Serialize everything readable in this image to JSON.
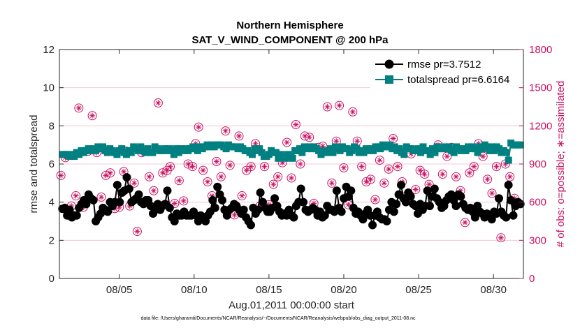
{
  "chart_data": {
    "type": "line",
    "title": "Northern Hemisphere",
    "subtitle": "SAT_V_WIND_COMPONENT @ 200 hPa",
    "xlabel": "Aug.01,2011 00:00:00 start",
    "ylabel": "rmse and totalspread",
    "y2label": "# of obs: o=possible; ∗=assimilated",
    "xlim": [
      1,
      32
    ],
    "ylim": [
      0,
      12
    ],
    "y2lim": [
      0,
      1800
    ],
    "x_ticks": [
      5,
      10,
      15,
      20,
      25,
      30
    ],
    "x_tick_labels": [
      "08/05",
      "08/10",
      "08/15",
      "08/20",
      "08/25",
      "08/30"
    ],
    "y_ticks": [
      0,
      2,
      4,
      6,
      8,
      10,
      12
    ],
    "y2_ticks": [
      0,
      300,
      600,
      900,
      1200,
      1500,
      1800
    ],
    "legend_position": "top-right",
    "grid": "horizontal, right-axis ticks",
    "colors": {
      "rmse": "#000000",
      "totalspread": "#008080",
      "obs": "#cc1060"
    },
    "series": [
      {
        "name": "rmse pr=3.7512",
        "axis": "left",
        "marker": "circle",
        "values": [
          3.65,
          3.7,
          3.3,
          3.6,
          3.2,
          3.3,
          3.3,
          3.7,
          3.9,
          4.1,
          3.9,
          4.4,
          4.2,
          4.1,
          3.0,
          3.2,
          3.4,
          3.7,
          3.6,
          3.5,
          4.0,
          3.8,
          4.0,
          4.9,
          4.0,
          4.5,
          4.6,
          5.3,
          4.7,
          4.0,
          4.1,
          4.2,
          4.4,
          4.0,
          3.9,
          4.1,
          4.1,
          3.8,
          3.4,
          3.6,
          3.9,
          3.6,
          3.8,
          3.9,
          4.6,
          3.7,
          3.2,
          3.0,
          3.4,
          3.3,
          3.3,
          3.5,
          3.3,
          3.3,
          3.3,
          3.5,
          3.3,
          3.0,
          3.3,
          3.1,
          3.0,
          3.3,
          3.5,
          4.1,
          3.7,
          4.8,
          4.4,
          4.1,
          3.6,
          3.3,
          3.6,
          3.7,
          3.9,
          3.8,
          3.6,
          3.4,
          3.6,
          3.2,
          3.0,
          2.8,
          3.7,
          3.4,
          3.6,
          4.5,
          4.0,
          3.7,
          3.5,
          3.5,
          3.7,
          4.2,
          3.8,
          3.5,
          3.3,
          3.4,
          3.3,
          3.6,
          3.3,
          3.2,
          3.8,
          4.0,
          4.7,
          4.0,
          3.6,
          3.5,
          3.6,
          3.7,
          3.6,
          3.3,
          3.5,
          3.2,
          3.3,
          3.8,
          3.6,
          3.6,
          3.5,
          4.6,
          3.7,
          3.5,
          4.2,
          4.8,
          4.3,
          4.6,
          3.7,
          3.4,
          3.5,
          3.3,
          3.1,
          3.4,
          3.6,
          3.3,
          2.8,
          3.3,
          3.5,
          3.2,
          3.1,
          3.1,
          3.0,
          3.6,
          4.0,
          3.5,
          3.9,
          4.4,
          4.9,
          4.2,
          4.0,
          4.5,
          4.3,
          3.9,
          3.8,
          3.4,
          3.9,
          3.6,
          3.8,
          4.6,
          3.8,
          4.3,
          4.7,
          4.2,
          4.0,
          3.7,
          3.8,
          4.1,
          4.3,
          4.4,
          4.1,
          3.8,
          4.4,
          4.3,
          3.9,
          3.7,
          3.6,
          3.7,
          3.5,
          3.2,
          3.8,
          3.5,
          3.4,
          3.2,
          3.4,
          3.3,
          3.1,
          3.5,
          3.4,
          4.2,
          3.5,
          3.3,
          3.2,
          4.9,
          4.1,
          3.3,
          3.8,
          4.0,
          3.9
        ]
      },
      {
        "name": "totalspread pr=6.6164",
        "axis": "left",
        "marker": "square",
        "values": [
          6.5,
          6.5,
          6.5,
          6.4,
          6.5,
          6.4,
          6.6,
          6.5,
          6.7,
          6.6,
          6.7,
          6.8,
          6.7,
          6.8,
          6.7,
          6.9,
          6.8,
          6.9,
          6.7,
          6.6,
          6.8,
          6.7,
          6.6,
          6.5,
          6.7,
          6.8,
          6.6,
          6.5,
          6.7,
          6.6,
          6.9,
          6.8,
          6.7,
          6.9,
          6.7,
          6.6,
          6.8,
          6.6,
          6.6,
          6.9,
          6.8,
          6.7,
          6.7,
          6.8,
          6.7,
          6.8,
          6.7,
          6.5,
          6.8,
          6.6,
          6.8,
          6.7,
          6.8,
          6.7,
          6.8,
          6.9,
          6.8,
          6.7,
          6.9,
          6.8,
          6.9,
          7.0,
          6.9,
          7.0,
          6.9,
          7.0,
          7.0,
          7.0,
          6.9,
          6.8,
          7.0,
          6.9,
          6.9,
          6.9,
          6.8,
          6.9,
          6.8,
          6.7,
          6.7,
          6.6,
          6.5,
          6.8,
          6.7,
          6.8,
          6.6,
          6.4,
          6.4,
          6.5,
          6.7,
          6.6,
          6.6,
          6.3,
          6.5,
          6.4,
          6.3,
          6.5,
          6.4,
          6.3,
          6.7,
          6.7,
          6.8,
          6.6,
          6.9,
          6.8,
          6.9,
          6.8,
          6.9,
          6.8,
          6.7,
          6.5,
          6.6,
          6.7,
          6.6,
          6.8,
          6.6,
          6.9,
          6.8,
          6.7,
          6.9,
          6.8,
          6.8,
          6.6,
          6.7,
          6.9,
          6.8,
          6.6,
          6.7,
          6.6,
          6.8,
          6.7,
          6.8,
          6.7,
          6.9,
          6.9,
          6.8,
          7.0,
          6.9,
          6.9,
          7.0,
          6.8,
          6.9,
          6.7,
          6.8,
          6.6,
          6.5,
          6.9,
          6.8,
          6.8,
          6.7,
          6.7,
          6.8,
          6.6,
          6.9,
          6.7,
          6.7,
          6.5,
          6.8,
          6.6,
          6.9,
          6.8,
          6.8,
          6.9,
          6.8,
          6.9,
          6.7,
          6.6,
          6.9,
          6.8,
          6.7,
          6.8,
          6.7,
          6.9,
          6.8,
          6.9,
          6.8,
          6.6,
          6.9,
          6.8,
          7.0,
          6.9,
          6.7,
          6.9,
          6.7,
          6.9,
          6.8,
          6.6,
          6.7,
          6.6,
          6.2,
          7.1,
          7.0,
          7.0,
          7.0,
          7.0
        ]
      },
      {
        "name": "# of obs possible",
        "axis": "right",
        "marker": "circle-open",
        "x": [
          1.1,
          1.4,
          1.8,
          2.1,
          2.3,
          2.6,
          2.9,
          3.2,
          3.5,
          3.8,
          4.1,
          4.4,
          4.7,
          5.0,
          5.3,
          5.5,
          5.7,
          6.0,
          6.2,
          6.5,
          6.7,
          7.0,
          7.3,
          7.6,
          7.9,
          8.2,
          8.4,
          8.7,
          9.0,
          9.3,
          9.6,
          9.9,
          10.1,
          10.3,
          10.6,
          10.9,
          11.2,
          11.5,
          11.8,
          12.1,
          12.4,
          12.7,
          13.0,
          13.2,
          13.5,
          13.8,
          14.1,
          14.4,
          14.7,
          15.0,
          15.3,
          15.6,
          15.9,
          16.2,
          16.5,
          16.8,
          17.1,
          17.4,
          17.7,
          18.0,
          18.3,
          18.6,
          18.9,
          19.2,
          19.5,
          19.7,
          20.0,
          20.3,
          20.6,
          20.9,
          21.2,
          21.5,
          21.8,
          22.1,
          22.4,
          22.7,
          23.0,
          23.3,
          23.6,
          23.9,
          24.2,
          24.5,
          24.8,
          25.1,
          25.4,
          25.7,
          26.0,
          26.3,
          26.6,
          26.9,
          27.2,
          27.5,
          27.8,
          28.1,
          28.4,
          28.7,
          29.0,
          29.3,
          29.6,
          29.9,
          30.2,
          30.5,
          30.8,
          31.1,
          31.4
        ],
        "values": [
          810,
          950,
          570,
          650,
          1340,
          560,
          1000,
          1280,
          990,
          640,
          810,
          830,
          550,
          560,
          840,
          1000,
          570,
          750,
          370,
          990,
          1010,
          800,
          690,
          1380,
          830,
          850,
          880,
          590,
          770,
          610,
          900,
          880,
          1060,
          1190,
          850,
          760,
          650,
          920,
          800,
          1160,
          890,
          500,
          1120,
          650,
          850,
          880,
          1060,
          570,
          880,
          580,
          740,
          800,
          910,
          1070,
          790,
          1210,
          900,
          1120,
          1110,
          590,
          1030,
          1040,
          1350,
          750,
          1080,
          1360,
          870,
          580,
          1310,
          1080,
          880,
          760,
          780,
          620,
          930,
          750,
          860,
          1100,
          880,
          760,
          650,
          980,
          700,
          850,
          820,
          740,
          1010,
          1050,
          820,
          960,
          1030,
          800,
          690,
          440,
          830,
          880,
          1060,
          960,
          780,
          670,
          880,
          320,
          900,
          800,
          630
        ]
      },
      {
        "name": "# of obs assimilated",
        "axis": "right",
        "marker": "asterisk",
        "x": [
          1.1,
          1.4,
          1.8,
          2.1,
          2.3,
          2.6,
          2.9,
          3.2,
          3.5,
          3.8,
          4.1,
          4.4,
          4.7,
          5.0,
          5.3,
          5.5,
          5.7,
          6.0,
          6.2,
          6.5,
          6.7,
          7.0,
          7.3,
          7.6,
          7.9,
          8.2,
          8.4,
          8.7,
          9.0,
          9.3,
          9.6,
          9.9,
          10.1,
          10.3,
          10.6,
          10.9,
          11.2,
          11.5,
          11.8,
          12.1,
          12.4,
          12.7,
          13.0,
          13.2,
          13.5,
          13.8,
          14.1,
          14.4,
          14.7,
          15.0,
          15.3,
          15.6,
          15.9,
          16.2,
          16.5,
          16.8,
          17.1,
          17.4,
          17.7,
          18.0,
          18.3,
          18.6,
          18.9,
          19.2,
          19.5,
          19.7,
          20.0,
          20.3,
          20.6,
          20.9,
          21.2,
          21.5,
          21.8,
          22.1,
          22.4,
          22.7,
          23.0,
          23.3,
          23.6,
          23.9,
          24.2,
          24.5,
          24.8,
          25.1,
          25.4,
          25.7,
          26.0,
          26.3,
          26.6,
          26.9,
          27.2,
          27.5,
          27.8,
          28.1,
          28.4,
          28.7,
          29.0,
          29.3,
          29.6,
          29.9,
          30.2,
          30.5,
          30.8,
          31.1,
          31.4
        ],
        "values": [
          810,
          950,
          570,
          650,
          1340,
          560,
          1000,
          1280,
          990,
          640,
          810,
          830,
          550,
          560,
          840,
          1000,
          570,
          750,
          370,
          990,
          1010,
          800,
          690,
          1380,
          830,
          850,
          880,
          590,
          770,
          610,
          900,
          880,
          1060,
          1190,
          850,
          760,
          650,
          920,
          800,
          1160,
          890,
          500,
          1120,
          650,
          850,
          880,
          1060,
          570,
          880,
          580,
          740,
          800,
          910,
          1070,
          790,
          1210,
          900,
          1120,
          1110,
          590,
          1030,
          1040,
          1350,
          750,
          1080,
          1360,
          870,
          580,
          1310,
          1080,
          880,
          760,
          780,
          620,
          930,
          750,
          860,
          1100,
          880,
          760,
          650,
          980,
          700,
          850,
          820,
          740,
          1010,
          1050,
          820,
          960,
          1030,
          800,
          690,
          440,
          830,
          880,
          1060,
          960,
          780,
          670,
          880,
          320,
          900,
          800,
          630
        ]
      }
    ],
    "footnote": "data file: /Users/gharamti/Documents/NCAR/Reanalysis/~/Documents/NCAR/Reanalysis/webpub/obs_diag_output_2011-08.nc"
  }
}
